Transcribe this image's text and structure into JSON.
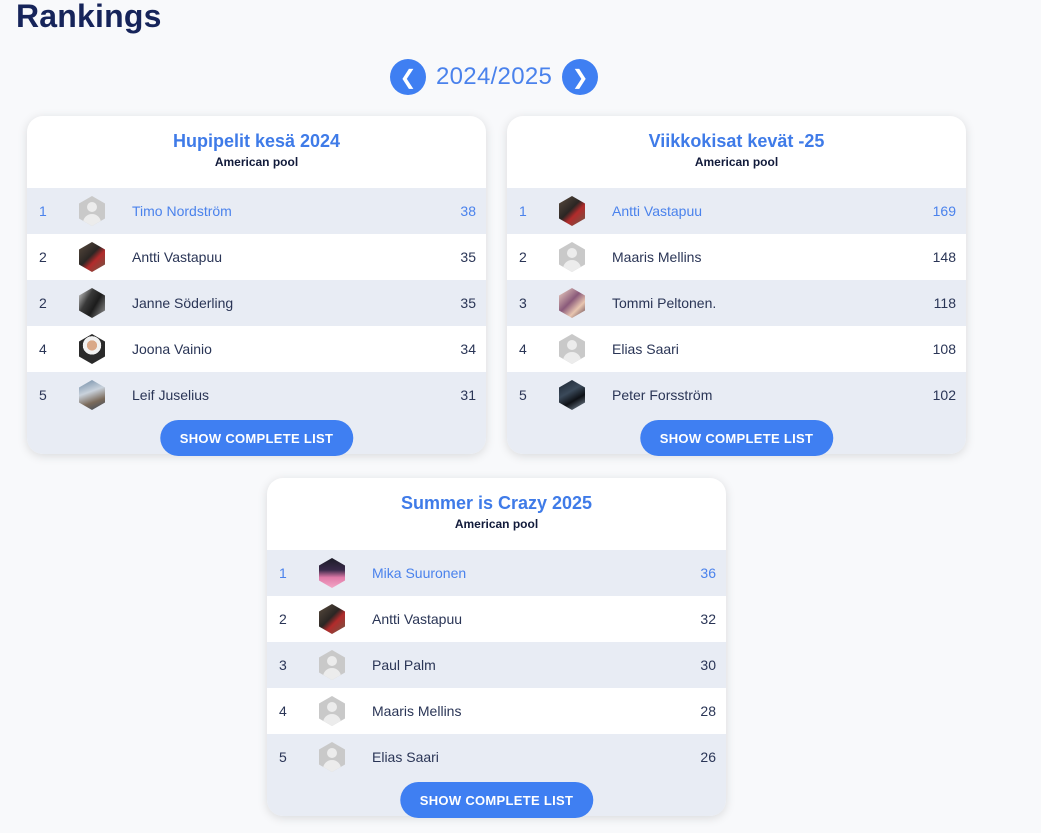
{
  "page": {
    "title": "Rankings"
  },
  "season": {
    "label": "2024/2025",
    "prev_icon": "❮",
    "next_icon": "❯"
  },
  "colors": {
    "accent": "#3f7ff2",
    "title_blue": "#3f7be8",
    "row_alt": "#e8ecf4"
  },
  "cards": [
    {
      "title": "Hupipelit kesä 2024",
      "subtitle": "American pool",
      "button": "SHOW COMPLETE LIST",
      "rows": [
        {
          "rank": "1",
          "name": "Timo Nordström",
          "score": "38",
          "avatar": "placeholder"
        },
        {
          "rank": "2",
          "name": "Antti Vastapuu",
          "score": "35",
          "avatar": "photo"
        },
        {
          "rank": "2",
          "name": "Janne Söderling",
          "score": "35",
          "avatar": "photo"
        },
        {
          "rank": "4",
          "name": "Joona Vainio",
          "score": "34",
          "avatar": "photo"
        },
        {
          "rank": "5",
          "name": "Leif Juselius",
          "score": "31",
          "avatar": "photo"
        }
      ]
    },
    {
      "title": "Viikkokisat kevät -25",
      "subtitle": "American pool",
      "button": "SHOW COMPLETE LIST",
      "rows": [
        {
          "rank": "1",
          "name": "Antti Vastapuu",
          "score": "169",
          "avatar": "photo"
        },
        {
          "rank": "2",
          "name": "Maaris Mellins",
          "score": "148",
          "avatar": "placeholder"
        },
        {
          "rank": "3",
          "name": "Tommi Peltonen.",
          "score": "118",
          "avatar": "photo"
        },
        {
          "rank": "4",
          "name": "Elias Saari",
          "score": "108",
          "avatar": "placeholder"
        },
        {
          "rank": "5",
          "name": "Peter Forsström",
          "score": "102",
          "avatar": "photo"
        }
      ]
    },
    {
      "title": "Summer is Crazy 2025",
      "subtitle": "American pool",
      "button": "SHOW COMPLETE LIST",
      "rows": [
        {
          "rank": "1",
          "name": "Mika Suuronen",
          "score": "36",
          "avatar": "photo"
        },
        {
          "rank": "2",
          "name": "Antti Vastapuu",
          "score": "32",
          "avatar": "photo"
        },
        {
          "rank": "3",
          "name": "Paul Palm",
          "score": "30",
          "avatar": "placeholder"
        },
        {
          "rank": "4",
          "name": "Maaris Mellins",
          "score": "28",
          "avatar": "placeholder"
        },
        {
          "rank": "5",
          "name": "Elias Saari",
          "score": "26",
          "avatar": "placeholder"
        }
      ]
    }
  ]
}
